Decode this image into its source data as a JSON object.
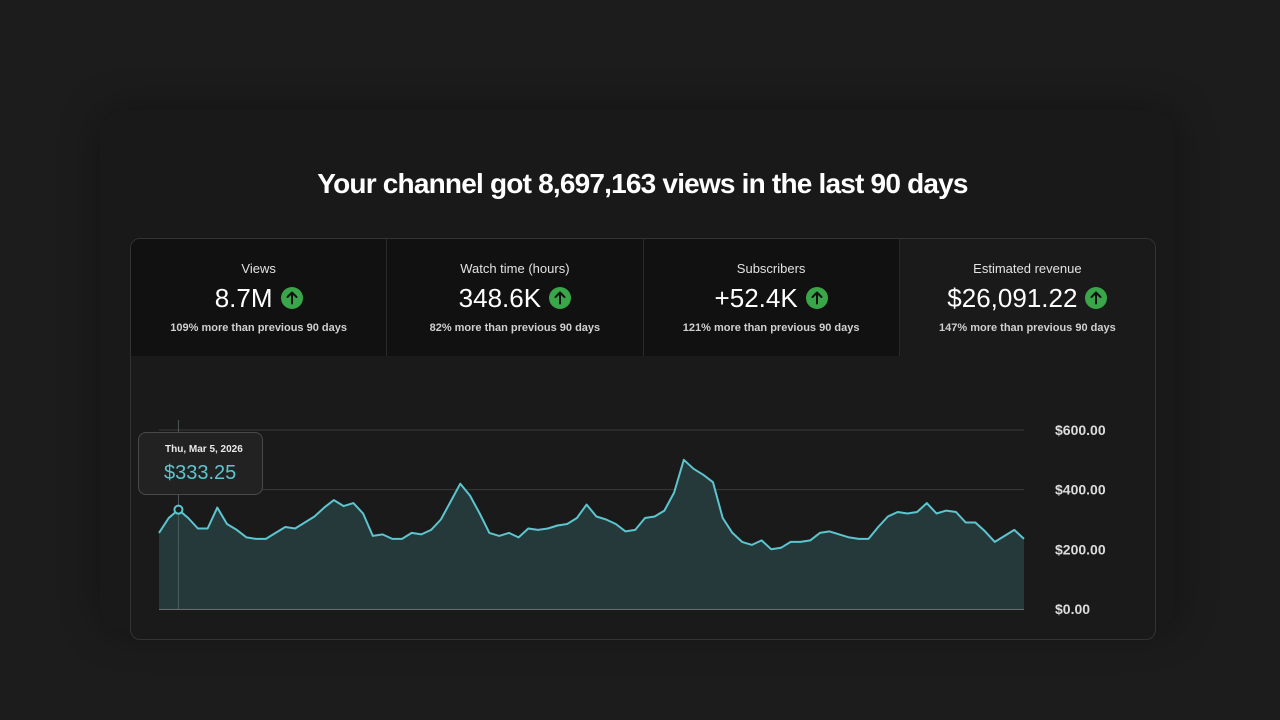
{
  "headline": "Your channel got 8,697,163 views in the last 90 days",
  "metrics": [
    {
      "label": "Views",
      "value": "8.7M",
      "change": "109% more than previous 90 days",
      "trend_icon": "arrow-up-icon"
    },
    {
      "label": "Watch time (hours)",
      "value": "348.6K",
      "change": "82% more than previous 90 days",
      "trend_icon": "arrow-up-icon"
    },
    {
      "label": "Subscribers",
      "value": "+52.4K",
      "change": "121% more than previous 90 days",
      "trend_icon": "arrow-up-icon"
    },
    {
      "label": "Estimated revenue",
      "value": "$26,091.22",
      "change": "147% more than previous 90 days",
      "trend_icon": "arrow-up-icon"
    }
  ],
  "selected_metric": 3,
  "tooltip": {
    "date": "Thu, Mar 5, 2026",
    "value": "$333.25"
  },
  "colors": {
    "accent": "#5cc5cf",
    "up": "#3aa64a",
    "fill": "#263a3c"
  },
  "chart_data": {
    "type": "area",
    "title": "",
    "xlabel": "",
    "ylabel": "",
    "ylim": [
      0,
      600
    ],
    "y_ticks": [
      "$600.00",
      "$400.00",
      "$200.00",
      "$0.00"
    ],
    "y_tick_values": [
      600,
      400,
      200,
      0
    ],
    "grid": true,
    "highlight_index": 2,
    "series": [
      {
        "values": [
          255,
          305,
          333,
          305,
          270,
          270,
          340,
          285,
          265,
          240,
          235,
          235,
          255,
          275,
          270,
          290,
          310,
          340,
          365,
          345,
          355,
          320,
          245,
          250,
          235,
          235,
          255,
          250,
          265,
          300,
          360,
          420,
          380,
          320,
          255,
          245,
          255,
          240,
          270,
          265,
          270,
          280,
          285,
          305,
          350,
          310,
          300,
          285,
          260,
          265,
          305,
          310,
          330,
          390,
          500,
          470,
          450,
          425,
          305,
          255,
          225,
          215,
          230,
          200,
          205,
          225,
          225,
          230,
          255,
          260,
          250,
          240,
          235,
          235,
          275,
          310,
          325,
          320,
          325,
          355,
          320,
          330,
          325,
          290,
          290,
          260,
          225,
          245,
          265,
          235
        ]
      }
    ]
  }
}
